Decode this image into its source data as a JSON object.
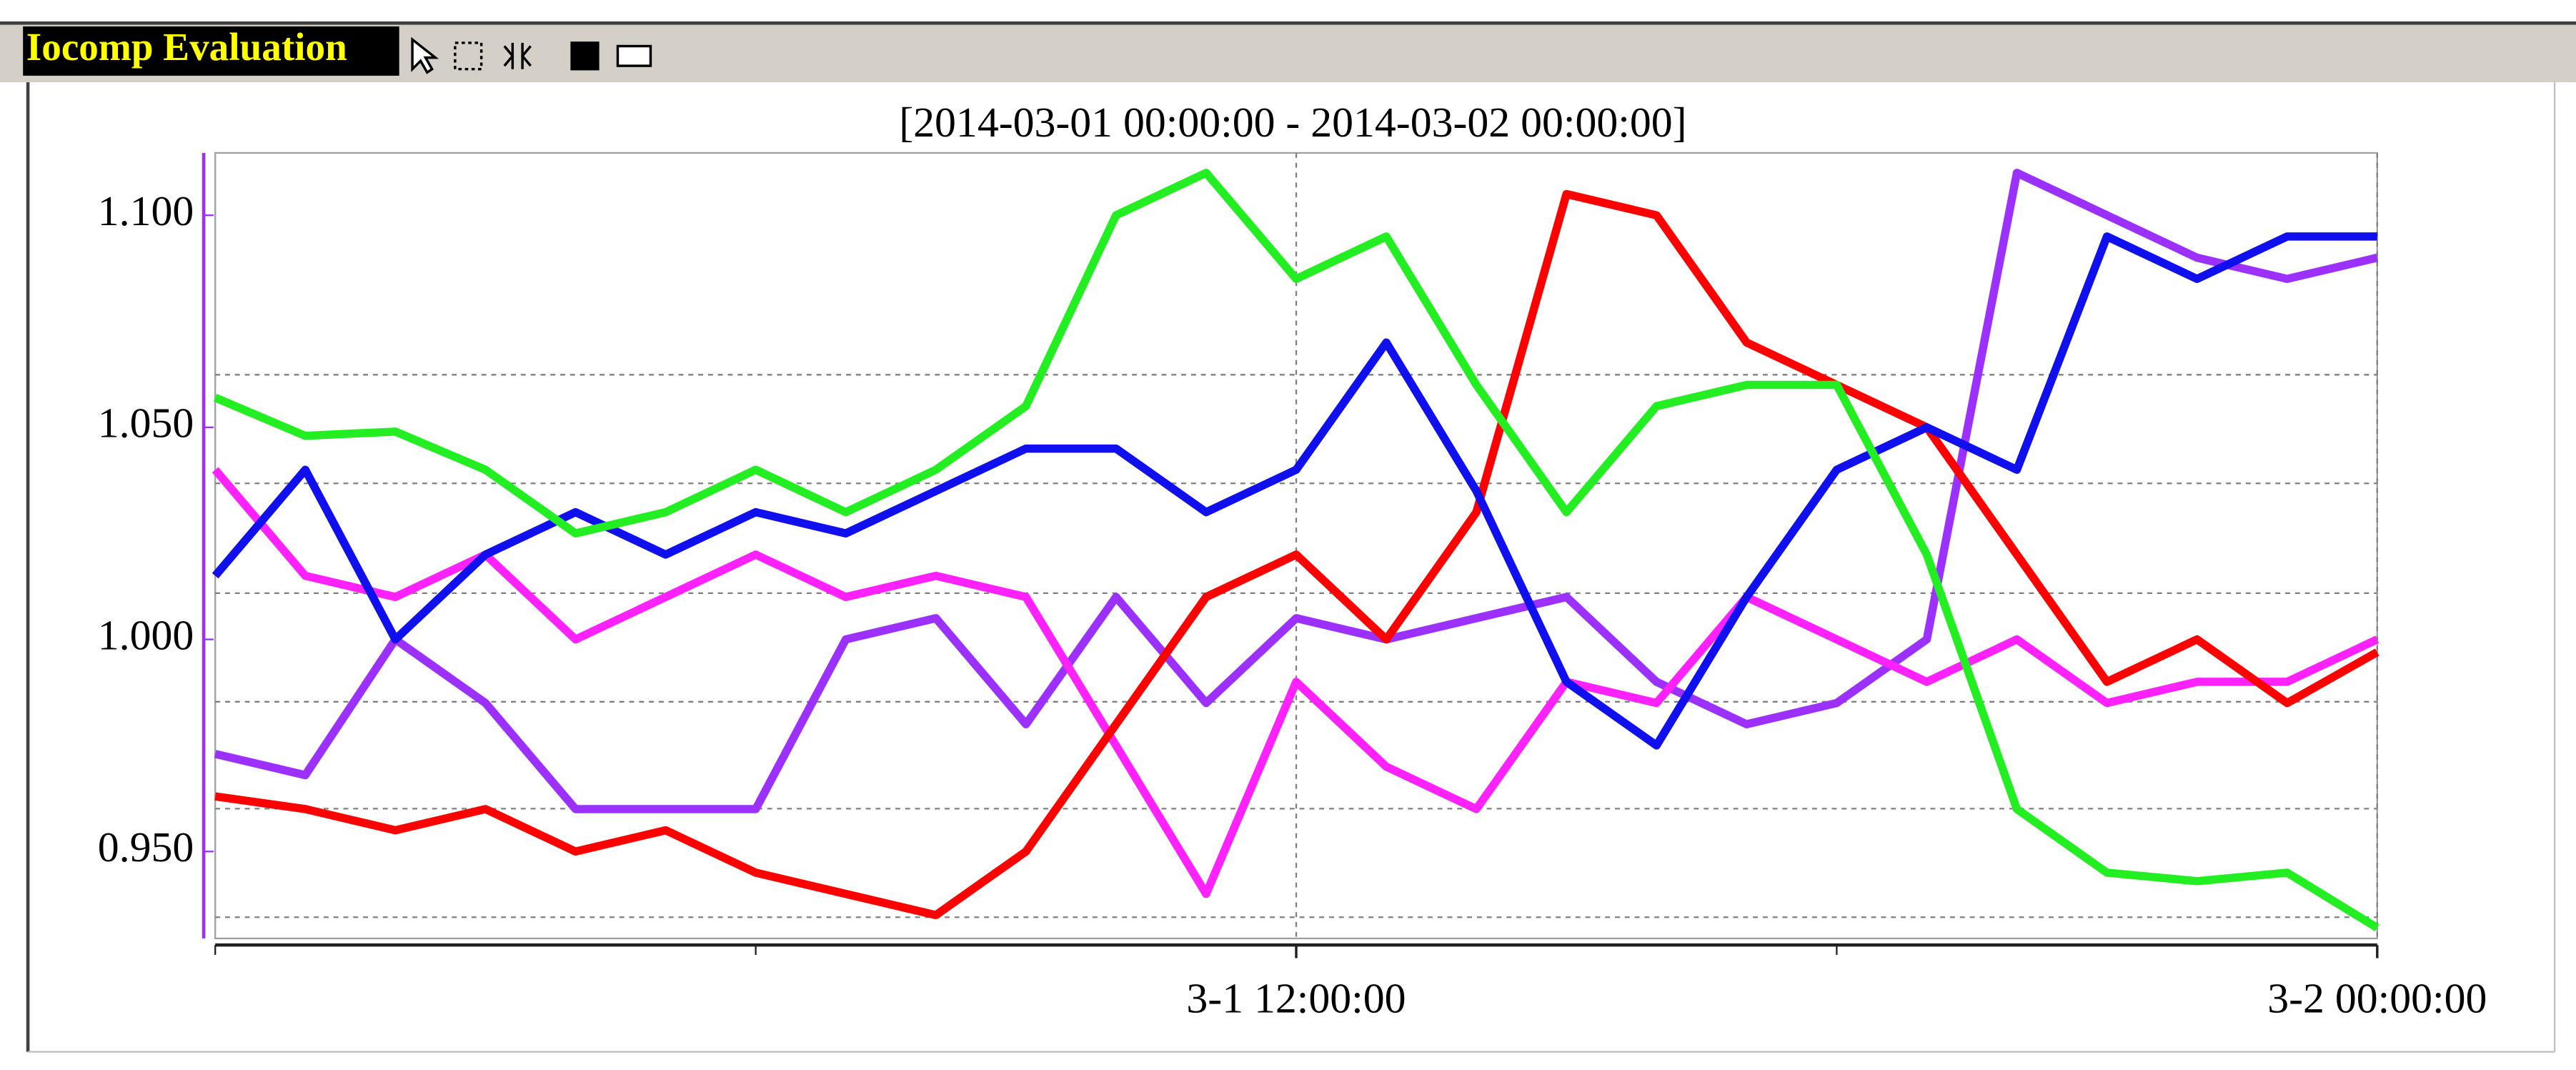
{
  "toolbar": {
    "label": "Iocomp Evaluation"
  },
  "chart_data": {
    "type": "line",
    "title": "[2014-03-01 00:00:00 - 2014-03-02 00:00:00]",
    "x": [
      0,
      1,
      2,
      3,
      4,
      5,
      6,
      7,
      8,
      9,
      10,
      11,
      12,
      13,
      14,
      15,
      16,
      17,
      18,
      19,
      20,
      21,
      22,
      23,
      24
    ],
    "xlim": [
      0,
      24
    ],
    "xticks": [
      {
        "value": 12,
        "label": "3-1 12:00:00"
      },
      {
        "value": 24,
        "label": "3-2 00:00:00"
      }
    ],
    "xminorticks": [
      0,
      6,
      18
    ],
    "ylim": [
      0.9295,
      1.1147
    ],
    "yticks": [
      {
        "value": 0.95,
        "label": "0.950"
      },
      {
        "value": 1.0,
        "label": "1.000"
      },
      {
        "value": 1.05,
        "label": "1.050"
      },
      {
        "value": 1.1,
        "label": "1.100"
      }
    ],
    "ygrid": [
      1.0624,
      1.0368,
      1.0109,
      0.9853,
      0.9601,
      0.9345
    ],
    "grid": true,
    "series": [
      {
        "color": "#9b30ff",
        "values": [
          0.973,
          0.968,
          1.0,
          0.985,
          0.96,
          0.96,
          0.96,
          1.0,
          1.005,
          0.98,
          1.01,
          0.985,
          1.005,
          1.0,
          1.005,
          1.01,
          0.99,
          0.98,
          0.985,
          1.0,
          1.11,
          1.1,
          1.09,
          1.085,
          1.09
        ]
      },
      {
        "color": "#ff22ff",
        "values": [
          1.04,
          1.015,
          1.01,
          1.02,
          1.0,
          1.01,
          1.02,
          1.01,
          1.015,
          1.01,
          0.975,
          0.94,
          0.99,
          0.97,
          0.96,
          0.99,
          0.985,
          1.01,
          1.0,
          0.99,
          1.0,
          0.985,
          0.99,
          0.99,
          1.0
        ]
      },
      {
        "color": "#ff0000",
        "values": [
          0.963,
          0.96,
          0.955,
          0.96,
          0.95,
          0.955,
          0.945,
          0.94,
          0.935,
          0.95,
          0.98,
          1.01,
          1.02,
          1.0,
          1.03,
          1.105,
          1.1,
          1.07,
          1.06,
          1.05,
          1.02,
          0.99,
          1.0,
          0.985,
          0.997
        ]
      },
      {
        "color": "#1010ee",
        "values": [
          1.015,
          1.04,
          1.0,
          1.02,
          1.03,
          1.02,
          1.03,
          1.025,
          1.035,
          1.045,
          1.045,
          1.03,
          1.04,
          1.07,
          1.035,
          0.99,
          0.975,
          1.01,
          1.04,
          1.05,
          1.04,
          1.095,
          1.085,
          1.095,
          1.095
        ]
      },
      {
        "color": "#22ee22",
        "values": [
          1.057,
          1.048,
          1.049,
          1.04,
          1.025,
          1.03,
          1.04,
          1.03,
          1.04,
          1.055,
          1.1,
          1.11,
          1.085,
          1.095,
          1.06,
          1.03,
          1.055,
          1.06,
          1.06,
          1.02,
          0.96,
          0.945,
          0.943,
          0.945,
          0.932
        ]
      }
    ]
  }
}
